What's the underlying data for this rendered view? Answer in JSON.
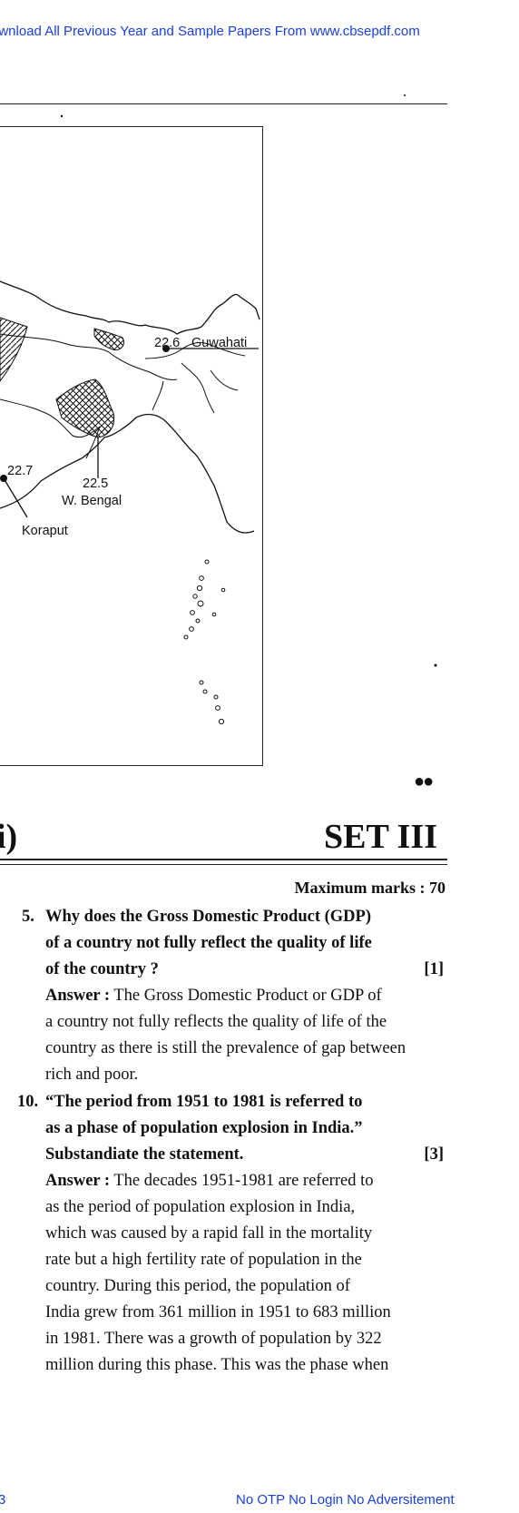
{
  "header": {
    "banner": "ownload All Previous Year and Sample Papers From www.cbsepdf.com"
  },
  "map": {
    "labels": {
      "guwahati_value": "22.6",
      "guwahati_name": "Guwahati",
      "koraput_value": "22.7",
      "koraput_name": "Koraput",
      "wbengal_value": "22.5",
      "wbengal_name": "W. Bengal"
    }
  },
  "section": {
    "left_fragment": "i)",
    "title": "SET III",
    "max_marks": "Maximum marks : 70"
  },
  "questions": [
    {
      "number": "5.",
      "lines": [
        "Why does the Gross Domestic Product (GDP)",
        "of a country not fully reflect the quality of life",
        "of the country ?"
      ],
      "marks": "[1]",
      "answer_label": "Answer :",
      "answer_lines": [
        " The Gross Domestic Product or GDP of",
        "a country not fully reflects the quality of life of the",
        "country as there is still the prevalence of gap between",
        "rich and poor."
      ]
    },
    {
      "number": "10.",
      "lines": [
        "“The period from 1951 to 1981 is referred to",
        "as a phase of population explosion in India.”",
        "Substandiate the statement."
      ],
      "marks": "[3]",
      "answer_label": "Answer :",
      "answer_lines": [
        " The decades 1951-1981 are referred to",
        "as the period of population explosion in India,",
        "which was caused by a rapid fall in the mortality",
        "rate but a high fertility rate of population in the",
        "country. During this period, the population of",
        "India grew from 361 million in 1951 to 683 million",
        "in 1981. There was a growth of population by 322",
        "million during this phase. This was the phase when"
      ]
    }
  ],
  "footer": {
    "page_number": "3",
    "notice": "No OTP No Login No Adversitement"
  }
}
